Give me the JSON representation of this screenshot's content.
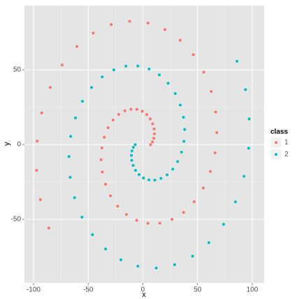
{
  "chart_data": {
    "type": "scatter",
    "x_label": "x",
    "y_label": "y",
    "legend_title": "class",
    "xlim": [
      -108.3,
      110.9
    ],
    "ylim": [
      -92.5,
      93
    ],
    "xticks": [
      -100,
      -50,
      0,
      50,
      100
    ],
    "yticks": [
      -50,
      0,
      50
    ],
    "grid": true,
    "series": [
      {
        "name": "1",
        "color": "#F8766D",
        "x": [
          7,
          8.7,
          10.0,
          10.5,
          10.2,
          8.9,
          6.7,
          3.5,
          -0.6,
          -5.5,
          -10.9,
          -16.5,
          -22.1,
          -27.3,
          -31.8,
          -35.3,
          -37.5,
          -38.2,
          -37.1,
          -34.2,
          -29.6,
          -23.1,
          -15.0,
          -5.7,
          4.6,
          15.5,
          26.6,
          37.2,
          46.9,
          55.3,
          61.7,
          66.0,
          67.6,
          66.5,
          62.5,
          55.7,
          46.1,
          34.1,
          20.1,
          4.6,
          -12.2,
          -29.0,
          -45.4,
          -60.3,
          -73.8,
          -84.7,
          -92.5,
          -96.7,
          -97.2,
          -93.8,
          -86.0
        ],
        "y": [
          0,
          1.8,
          4.2,
          7.2,
          10.5,
          13.9,
          17.2,
          20.1,
          22.3,
          23.6,
          23.7,
          22.6,
          20.2,
          16.4,
          11.3,
          5.0,
          -2.2,
          -10.1,
          -18.3,
          -26.5,
          -34.2,
          -41.1,
          -46.7,
          -50.6,
          -52.6,
          -52.5,
          -50.0,
          -45.3,
          -38.2,
          -29.0,
          -17.9,
          -5.5,
          8.0,
          21.8,
          35.5,
          48.5,
          60.2,
          69.8,
          77.0,
          81.3,
          82.5,
          80.3,
          74.6,
          65.6,
          53.3,
          38.3,
          21.2,
          2.4,
          -17.2,
          -36.8,
          -55.8
        ]
      },
      {
        "name": "2",
        "color": "#00BFC4",
        "x": [
          -7,
          -8.7,
          -10.0,
          -10.5,
          -10.2,
          -8.9,
          -6.7,
          -3.5,
          0.6,
          5.5,
          10.9,
          16.5,
          22.1,
          27.3,
          31.8,
          35.3,
          37.5,
          38.2,
          37.1,
          34.2,
          29.6,
          23.1,
          15.0,
          5.7,
          -4.6,
          -15.5,
          -26.6,
          -37.2,
          -46.9,
          -55.3,
          -61.7,
          -66.0,
          -67.6,
          -66.5,
          -62.5,
          -55.7,
          -46.1,
          -34.1,
          -20.1,
          -4.6,
          12.2,
          29.0,
          45.4,
          60.3,
          73.8,
          84.7,
          92.5,
          96.7,
          97.2,
          93.8,
          86.0
        ],
        "y": [
          0,
          -1.8,
          -4.2,
          -7.2,
          -10.5,
          -13.9,
          -17.2,
          -20.1,
          -22.3,
          -23.6,
          -23.7,
          -22.6,
          -20.2,
          -16.4,
          -11.3,
          -5.0,
          2.2,
          10.1,
          18.3,
          26.5,
          34.2,
          41.1,
          46.7,
          50.6,
          52.6,
          52.5,
          50.0,
          45.3,
          38.2,
          29.0,
          17.9,
          5.5,
          -8.0,
          -21.8,
          -35.5,
          -48.5,
          -60.2,
          -69.8,
          -77.0,
          -81.3,
          -82.5,
          -80.3,
          -74.6,
          -65.6,
          -53.3,
          -38.3,
          -21.2,
          -2.4,
          17.2,
          36.8,
          55.8
        ]
      }
    ]
  }
}
